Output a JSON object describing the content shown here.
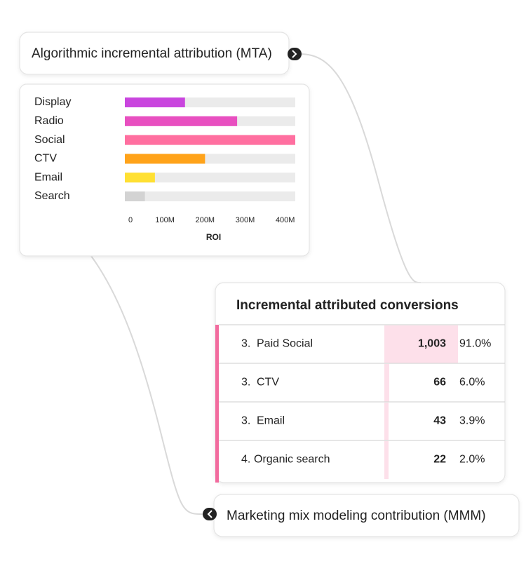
{
  "mta_card": {
    "title": "Algorithmic incremental attribution (MTA)"
  },
  "chart_data": {
    "type": "bar",
    "orientation": "horizontal",
    "categories": [
      "Display",
      "Radio",
      "Social",
      "CTV",
      "Email",
      "Search"
    ],
    "values": [
      150000000,
      280000000,
      425000000,
      200000000,
      75000000,
      50000000
    ],
    "colors": [
      "#c945de",
      "#e84fc0",
      "#ff6fa0",
      "#ffa31a",
      "#ffe033",
      "#d3d3d3"
    ],
    "xlim": [
      0,
      425000000
    ],
    "xticks": [
      0,
      {
        "value": 100000000,
        "label": "100M"
      },
      {
        "value": 200000000,
        "label": "200M"
      },
      {
        "value": 300000000,
        "label": "300M"
      },
      {
        "value": 400000000,
        "label": "400M"
      }
    ],
    "xlabel": "ROI",
    "grid": false
  },
  "table": {
    "title": "Incremental attributed conversions",
    "bar_color": "#fde0ea",
    "stripe_color": "#f26b9e",
    "rows": [
      {
        "rank": "3.",
        "name": "Paid Social",
        "share": "91.0%"
      },
      {
        "rank": "3.",
        "name": "CTV",
        "share": "6.0%"
      },
      {
        "rank": "3.",
        "name": "Email",
        "share": "3.9%"
      },
      {
        "rank": "4.",
        "name": "Organic search",
        "share": "2.0%"
      }
    ],
    "values": [
      1003,
      66,
      43,
      22
    ],
    "value_labels": [
      "1,003",
      "66",
      "43",
      "22"
    ]
  },
  "mmm_card": {
    "title": "Marketing mix modeling contribution (MMM)"
  }
}
